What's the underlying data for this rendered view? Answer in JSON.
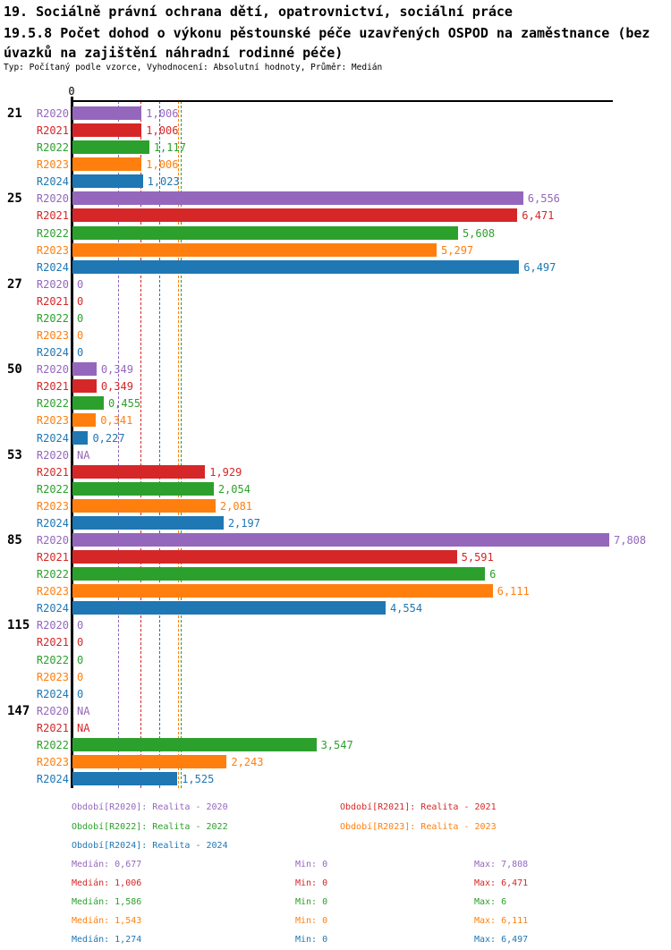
{
  "header": {
    "title": "19. Sociálně právní ochrana dětí, opatrovnictví, sociální práce",
    "subtitle": "19.5.8 Počet dohod o výkonu pěstounské péče uzavřených OSPOD na zaměstnance (bez úvazků na zajištění náhradní rodinné péče)",
    "meta": "Typ: Počítaný podle vzorce, Vyhodnocení: Absolutní hodnoty, Průměr: Medián"
  },
  "chart_data": {
    "type": "bar",
    "orientation": "horizontal",
    "title": "19.5.8 Počet dohod o výkonu pěstounské péče uzavřených OSPOD na zaměstnance (bez úvazků na zajištění náhradní rodinné péče)",
    "xlabel": "",
    "ylabel": "",
    "axis": {
      "zero_label": "0",
      "xlim": [
        0,
        7.808
      ],
      "grid": false
    },
    "categories": [
      "21",
      "25",
      "27",
      "50",
      "53",
      "85",
      "115",
      "147"
    ],
    "series_names": [
      "R2020",
      "R2021",
      "R2022",
      "R2023",
      "R2024"
    ],
    "series_colors": [
      "#9467bd",
      "#d62728",
      "#2ca02c",
      "#ff7f0e",
      "#1f77b4"
    ],
    "groups": [
      {
        "category": "21",
        "values": [
          1.006,
          1.006,
          1.117,
          1.006,
          1.023
        ],
        "displays": [
          "1,006",
          "1,006",
          "1,117",
          "1,006",
          "1,023"
        ]
      },
      {
        "category": "25",
        "values": [
          6.556,
          6.471,
          5.608,
          5.297,
          6.497
        ],
        "displays": [
          "6,556",
          "6,471",
          "5,608",
          "5,297",
          "6,497"
        ]
      },
      {
        "category": "27",
        "values": [
          0,
          0,
          0,
          0,
          0
        ],
        "displays": [
          "0",
          "0",
          "0",
          "0",
          "0"
        ]
      },
      {
        "category": "50",
        "values": [
          0.349,
          0.349,
          0.455,
          0.341,
          0.227
        ],
        "displays": [
          "0,349",
          "0,349",
          "0,455",
          "0,341",
          "0,227"
        ]
      },
      {
        "category": "53",
        "values": [
          null,
          1.929,
          2.054,
          2.081,
          2.197
        ],
        "displays": [
          "NA",
          "1,929",
          "2,054",
          "2,081",
          "2,197"
        ]
      },
      {
        "category": "85",
        "values": [
          7.808,
          5.591,
          6,
          6.111,
          4.554
        ],
        "displays": [
          "7,808",
          "5,591",
          "6",
          "6,111",
          "4,554"
        ]
      },
      {
        "category": "115",
        "values": [
          0,
          0,
          0,
          0,
          0
        ],
        "displays": [
          "0",
          "0",
          "0",
          "0",
          "0"
        ]
      },
      {
        "category": "147",
        "values": [
          null,
          null,
          3.547,
          2.243,
          1.525
        ],
        "displays": [
          "NA",
          "NA",
          "3,547",
          "2,243",
          "1,525"
        ]
      }
    ],
    "medians": [
      {
        "series": "R2020",
        "value": 0.677,
        "display": "0,677"
      },
      {
        "series": "R2021",
        "value": 1.006,
        "display": "1,006"
      },
      {
        "series": "R2022",
        "value": 1.586,
        "display": "1,586"
      },
      {
        "series": "R2023",
        "value": 1.543,
        "display": "1,543"
      },
      {
        "series": "R2024",
        "value": 1.274,
        "display": "1,274"
      }
    ],
    "legend_position": "bottom",
    "legend": [
      {
        "series": "R2020",
        "label": "Období[R2020]: Realita - 2020",
        "column": 0,
        "row": 0
      },
      {
        "series": "R2021",
        "label": "Období[R2021]: Realita - 2021",
        "column": 1,
        "row": 0
      },
      {
        "series": "R2022",
        "label": "Období[R2022]: Realita - 2022",
        "column": 0,
        "row": 1
      },
      {
        "series": "R2023",
        "label": "Období[R2023]: Realita - 2023",
        "column": 1,
        "row": 1
      },
      {
        "series": "R2024",
        "label": "Období[R2024]: Realita - 2024",
        "column": 0,
        "row": 2
      }
    ],
    "stats_labels": {
      "median": "Medián:",
      "min": "Min:",
      "max": "Max:"
    },
    "stats": [
      {
        "series": "R2020",
        "median": "0,677",
        "min": "0",
        "max": "7,808"
      },
      {
        "series": "R2021",
        "median": "1,006",
        "min": "0",
        "max": "6,471"
      },
      {
        "series": "R2022",
        "median": "1,586",
        "min": "0",
        "max": "6"
      },
      {
        "series": "R2023",
        "median": "1,543",
        "min": "0",
        "max": "6,111"
      },
      {
        "series": "R2024",
        "median": "1,274",
        "min": "0",
        "max": "6,497"
      }
    ]
  }
}
